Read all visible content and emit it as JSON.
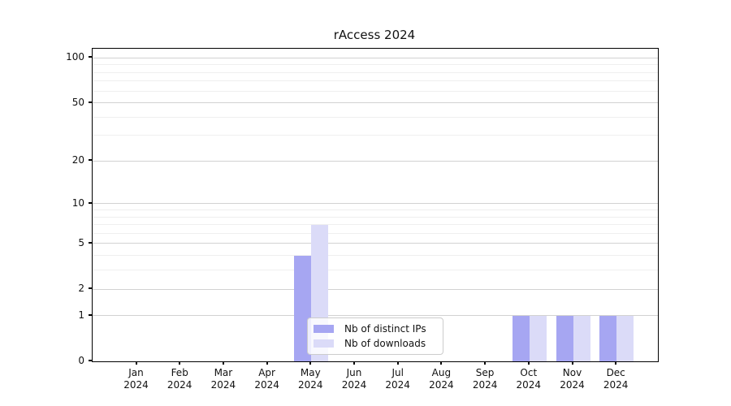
{
  "chart_data": {
    "type": "bar",
    "title": "rAccess 2024",
    "categories": [
      "Jan 2024",
      "Feb 2024",
      "Mar 2024",
      "Apr 2024",
      "May 2024",
      "Jun 2024",
      "Jul 2024",
      "Aug 2024",
      "Sep 2024",
      "Oct 2024",
      "Nov 2024",
      "Dec 2024"
    ],
    "series": [
      {
        "name": "Nb of distinct IPs",
        "color": "#a6a6f2",
        "values": [
          0,
          0,
          0,
          0,
          4,
          0,
          0,
          0,
          0,
          1,
          1,
          1
        ]
      },
      {
        "name": "Nb of downloads",
        "color": "#dbdbf8",
        "values": [
          0,
          0,
          0,
          0,
          7,
          0,
          0,
          0,
          0,
          1,
          1,
          1
        ]
      }
    ],
    "xlabel": "",
    "ylabel": "",
    "y_axis": {
      "scale": "log1p",
      "major_ticks": [
        0,
        1,
        2,
        5,
        10,
        20,
        50,
        100
      ],
      "minor_gridlines": [
        3,
        4,
        6,
        7,
        8,
        9,
        30,
        40,
        60,
        70,
        80,
        90
      ],
      "ylim": [
        0,
        115
      ]
    },
    "legend": {
      "position": "lower center"
    },
    "grid": true,
    "colors": {
      "major_grid": "#d2d2d2",
      "minor_grid": "#efefef",
      "axis": "#000000",
      "background": "#ffffff"
    }
  }
}
